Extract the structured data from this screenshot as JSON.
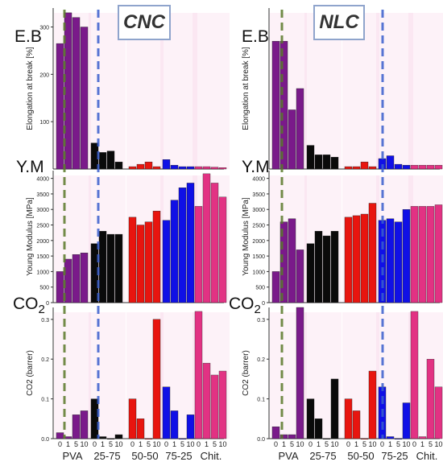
{
  "titles": {
    "cnc": "CNC",
    "nlc": "NLC"
  },
  "row_labels": {
    "eb": "E.B",
    "ym": "Y.M",
    "co2_main": "CO",
    "co2_sub": "2"
  },
  "group_labels": [
    "PVA",
    "25-75",
    "50-50",
    "75-25",
    "Chit."
  ],
  "bar_tick_labels": [
    "0",
    "1",
    "5",
    "10"
  ],
  "colors": {
    "PVA": "#7a1a8a",
    "25-75": "#0a0a0a",
    "50-50": "#e8150f",
    "75-25": "#1010e6",
    "Chit.": "#e01e77",
    "ref_line_green": "#5a7a2a",
    "ref_line_blue": "#3a5fcd",
    "glow": "#f2b6d8"
  },
  "chart_data": [
    {
      "type": "bar",
      "panel": "CNC",
      "ylabel": "Elongation at break [%]",
      "ylim": [
        0,
        340
      ],
      "yticks": [
        100,
        200,
        300
      ],
      "categories": [
        "PVA",
        "25-75",
        "50-50",
        "75-25",
        "Chit."
      ],
      "series": [
        {
          "name": "0",
          "values": [
            265,
            55,
            5,
            20,
            5
          ]
        },
        {
          "name": "1",
          "values": [
            330,
            35,
            10,
            8,
            5
          ]
        },
        {
          "name": "5",
          "values": [
            320,
            38,
            15,
            5,
            4
          ]
        },
        {
          "name": "10",
          "values": [
            300,
            15,
            5,
            5,
            3
          ]
        }
      ]
    },
    {
      "type": "bar",
      "panel": "CNC",
      "ylabel": "Young Modulus [MPa]",
      "ylim": [
        0,
        4250
      ],
      "yticks": [
        0,
        500,
        1000,
        1500,
        2000,
        2500,
        3000,
        3500,
        4000
      ],
      "categories": [
        "PVA",
        "25-75",
        "50-50",
        "75-25",
        "Chit."
      ],
      "series": [
        {
          "name": "0",
          "values": [
            1000,
            1900,
            2750,
            2650,
            3100
          ]
        },
        {
          "name": "1",
          "values": [
            1400,
            2300,
            2500,
            3300,
            4150
          ]
        },
        {
          "name": "5",
          "values": [
            1550,
            2200,
            2600,
            3700,
            3850
          ]
        },
        {
          "name": "10",
          "values": [
            1600,
            2200,
            2950,
            3850,
            3400
          ]
        }
      ]
    },
    {
      "type": "bar",
      "panel": "CNC",
      "ylabel": "CO2 (barrer)",
      "ylim": [
        0,
        0.33
      ],
      "yticks": [
        0.0,
        0.1,
        0.2,
        0.3
      ],
      "categories": [
        "PVA",
        "25-75",
        "50-50",
        "75-25",
        "Chit."
      ],
      "series": [
        {
          "name": "0",
          "values": [
            0.015,
            0.1,
            0.1,
            0.13,
            0.32
          ]
        },
        {
          "name": "1",
          "values": [
            0.005,
            0.005,
            0.05,
            0.07,
            0.19
          ]
        },
        {
          "name": "5",
          "values": [
            0.06,
            0.0,
            0.0,
            0.0,
            0.16
          ]
        },
        {
          "name": "10",
          "values": [
            0.07,
            0.01,
            0.3,
            0.06,
            0.17
          ]
        }
      ]
    },
    {
      "type": "bar",
      "panel": "NLC",
      "ylabel": "Elongation at break [%]",
      "ylim": [
        0,
        340
      ],
      "yticks": [],
      "categories": [
        "PVA",
        "25-75",
        "50-50",
        "75-25",
        "Chit."
      ],
      "series": [
        {
          "name": "0",
          "values": [
            270,
            50,
            5,
            22,
            8
          ]
        },
        {
          "name": "1",
          "values": [
            270,
            30,
            5,
            28,
            8
          ]
        },
        {
          "name": "5",
          "values": [
            125,
            30,
            15,
            10,
            8
          ]
        },
        {
          "name": "10",
          "values": [
            170,
            25,
            5,
            8,
            8
          ]
        }
      ]
    },
    {
      "type": "bar",
      "panel": "NLC",
      "ylabel": "Young Modulus [MPa]",
      "ylim": [
        0,
        4250
      ],
      "yticks": [
        0,
        500,
        1000,
        1500,
        2000,
        2500,
        3000,
        3500,
        4000
      ],
      "categories": [
        "PVA",
        "25-75",
        "50-50",
        "75-25",
        "Chit."
      ],
      "series": [
        {
          "name": "0",
          "values": [
            1000,
            1900,
            2750,
            2650,
            3100
          ]
        },
        {
          "name": "1",
          "values": [
            2600,
            2300,
            2800,
            2700,
            3100
          ]
        },
        {
          "name": "5",
          "values": [
            2700,
            2150,
            2850,
            2600,
            3100
          ]
        },
        {
          "name": "10",
          "values": [
            1700,
            2300,
            3200,
            3000,
            3150
          ]
        }
      ]
    },
    {
      "type": "bar",
      "panel": "NLC",
      "ylabel": "CO2 (barrer)",
      "ylim": [
        0,
        0.33
      ],
      "yticks": [
        0.0,
        0.1,
        0.2,
        0.3
      ],
      "categories": [
        "PVA",
        "25-75",
        "50-50",
        "75-25",
        "Chit."
      ],
      "series": [
        {
          "name": "0",
          "values": [
            0.03,
            0.1,
            0.1,
            0.13,
            0.32
          ]
        },
        {
          "name": "1",
          "values": [
            0.01,
            0.05,
            0.07,
            0.005,
            0.005
          ]
        },
        {
          "name": "5",
          "values": [
            0.01,
            0.0,
            0.0,
            0.0,
            0.2
          ]
        },
        {
          "name": "10",
          "values": [
            0.33,
            0.15,
            0.17,
            0.09,
            0.13
          ]
        }
      ]
    }
  ]
}
